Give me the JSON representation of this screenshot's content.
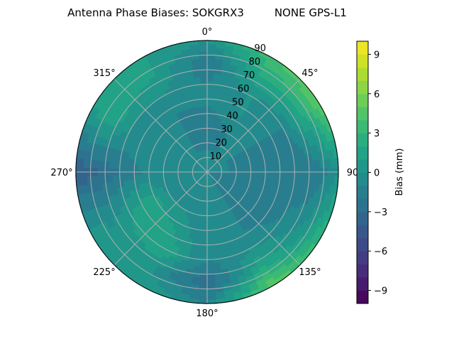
{
  "chart_data": {
    "type": "heatmap",
    "subtype": "polar-filled-contour",
    "title": "Antenna Phase Biases: SOKGRX3         NONE GPS-L1",
    "theta_direction": "clockwise",
    "theta_zero": "north",
    "theta_ticks": [
      "0°",
      "45°",
      "90",
      "135°",
      "180°",
      "225°",
      "270°",
      "315°"
    ],
    "radial_ticks": [
      "10",
      "20",
      "30",
      "40",
      "50",
      "60",
      "70",
      "80",
      "90"
    ],
    "radial_range": [
      0,
      90
    ],
    "grid": true,
    "azimuth": [
      0,
      30,
      60,
      90,
      120,
      150,
      180,
      210,
      240,
      270,
      300,
      330
    ],
    "zenith": [
      0,
      15,
      30,
      45,
      60,
      75,
      90
    ],
    "bias_mm": [
      [
        -1,
        -1,
        -1,
        -1,
        -1,
        -1,
        -1,
        -1,
        -1,
        -1,
        -1,
        -1
      ],
      [
        -1,
        -1,
        -1,
        -1,
        -2,
        -1,
        -1,
        -1,
        -1,
        -1,
        -1,
        -1
      ],
      [
        -2,
        -1,
        -1,
        -2,
        -2,
        -1,
        -1,
        0,
        0,
        -1,
        -1,
        -1
      ],
      [
        -1,
        0,
        -1,
        -2,
        -2,
        -1,
        -1,
        1,
        2,
        -1,
        0,
        -1
      ],
      [
        -1,
        0,
        -1,
        -2,
        -1,
        0,
        -1,
        2,
        1,
        -2,
        0,
        0
      ],
      [
        -2,
        2,
        2,
        -2,
        0,
        2,
        -3,
        0,
        0,
        -3,
        2,
        1
      ],
      [
        0,
        4,
        5,
        0,
        3,
        5,
        -1,
        1,
        1,
        -4,
        1,
        1
      ]
    ],
    "colormap": "viridis",
    "colorbar": {
      "label": "Bias (mm)",
      "range": [
        -10,
        10
      ],
      "levels": 20,
      "ticks": [
        "-9",
        "-6",
        "-3",
        "0",
        "3",
        "6",
        "9"
      ],
      "tick_values": [
        -9,
        -6,
        -3,
        0,
        3,
        6,
        9
      ]
    }
  }
}
